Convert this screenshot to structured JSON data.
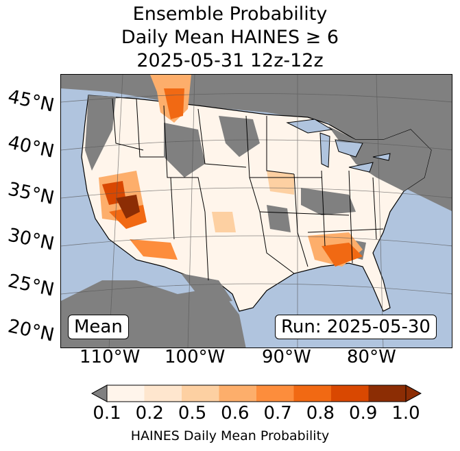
{
  "title": {
    "line1": "Ensemble Probability",
    "line2": "Daily Mean HAINES ≥ 6",
    "line3": "2025-05-31 12z-12z"
  },
  "map": {
    "lat_labels": [
      "45°N",
      "40°N",
      "35°N",
      "30°N",
      "25°N",
      "20°N"
    ],
    "lon_labels": [
      "110°W",
      "100°W",
      "90°W",
      "80°W"
    ],
    "mean_label": "Mean",
    "run_label": "Run: 2025-05-30",
    "colors": {
      "ocean": "#b0c4de",
      "outside": "#808080",
      "land_low": "#fff5eb"
    }
  },
  "colorbar": {
    "label": "HAINES Daily Mean Probability",
    "ticks": [
      "0.1",
      "0.2",
      "0.5",
      "0.6",
      "0.7",
      "0.8",
      "0.9",
      "1.0"
    ],
    "colors": [
      "#fff5eb",
      "#fee6ce",
      "#fdd0a2",
      "#fdae6b",
      "#fd8d3c",
      "#f16913",
      "#d94801",
      "#8c2d04"
    ],
    "under_color": "#808080"
  }
}
